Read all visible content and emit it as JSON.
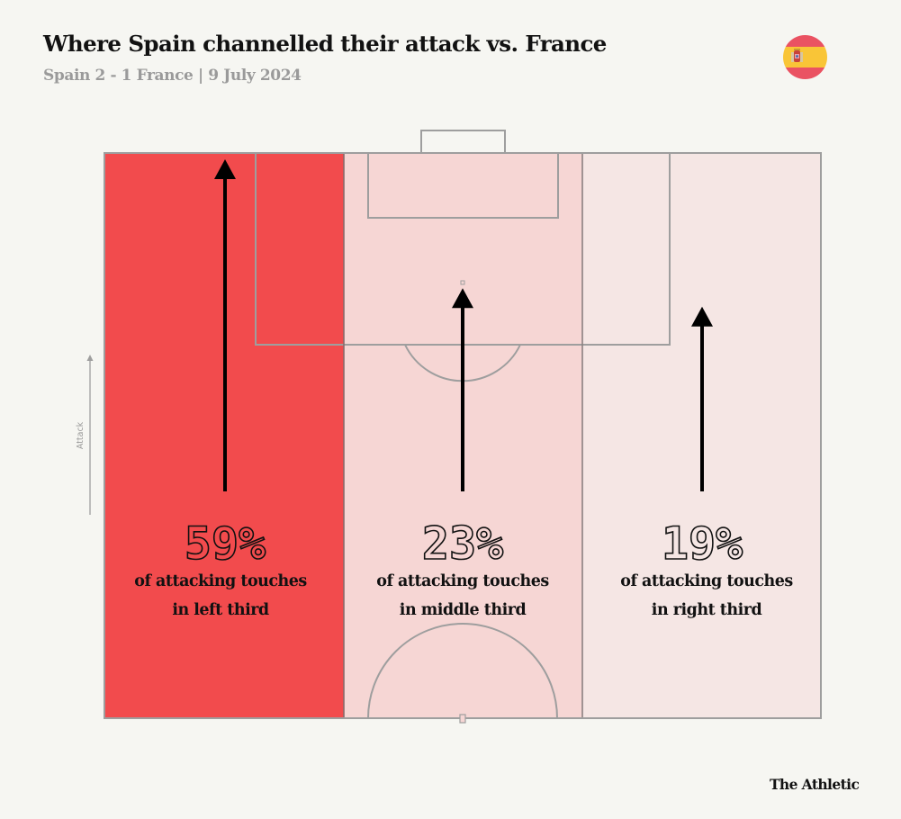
{
  "header": {
    "title": "Where Spain channelled their attack vs. France",
    "subtitle": "Spain 2 - 1 France | 9 July 2024",
    "team_flag_icon": "spain-flag-icon"
  },
  "footer": {
    "brand": "The Athletic"
  },
  "colors": {
    "background": "#f6f6f2",
    "high": "#f24b4d",
    "mid": "#f6d6d4",
    "low": "#f5e6e4",
    "lines": "#9e9e9e",
    "arrow": "#000000",
    "flag_red": "#ea5262",
    "flag_yellow": "#f9c537"
  },
  "axis": {
    "attack_label": "Attack",
    "direction": "up"
  },
  "chart_data": {
    "type": "bar",
    "title": "Where Spain channelled their attack vs. France",
    "subtitle": "Spain 2 - 1 France | 9 July 2024",
    "xlabel": "",
    "ylabel": "Attack",
    "categories": [
      "Left third",
      "Middle third",
      "Right third"
    ],
    "values": [
      59,
      23,
      19
    ],
    "unit": "%",
    "labels": [
      {
        "value_text": "59%",
        "line1": "of attacking touches",
        "line2": "in left third"
      },
      {
        "value_text": "23%",
        "line1": "of attacking touches",
        "line2": "in middle third"
      },
      {
        "value_text": "19%",
        "line1": "of attacking touches",
        "line2": "in right third"
      }
    ],
    "encoding": "fill shade and arrow length proportional to share of attacking touches",
    "ylim": [
      0,
      100
    ],
    "grid": false,
    "legend": "none"
  }
}
